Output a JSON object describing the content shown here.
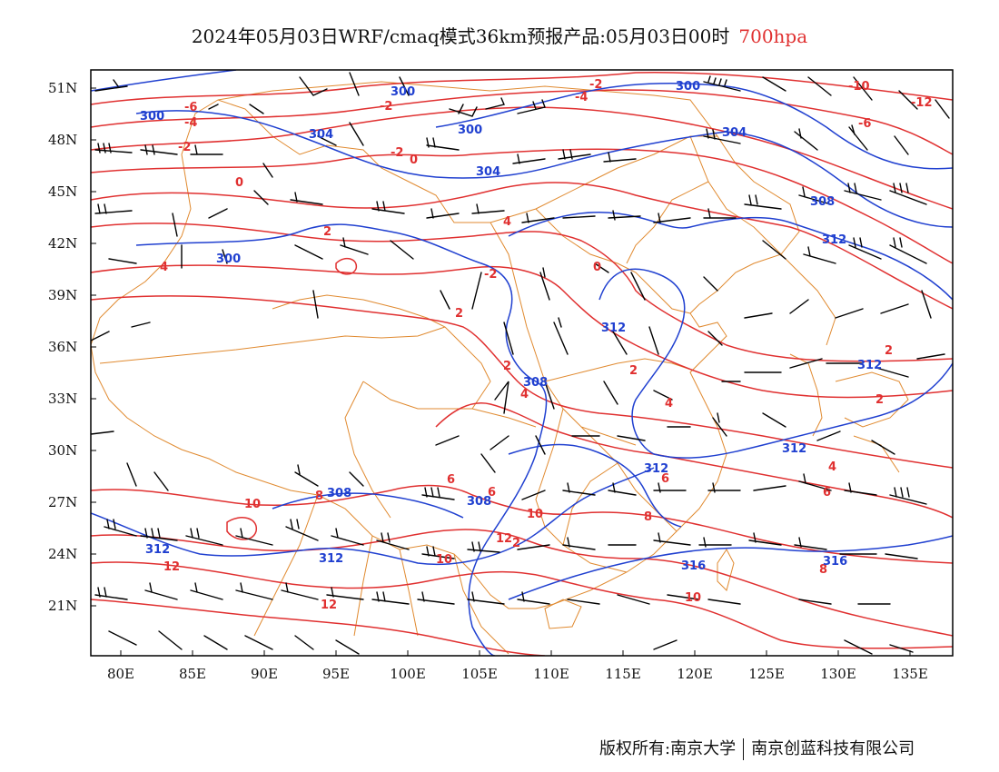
{
  "header": {
    "title": "2024年05月03日WRF/cmaq模式36km预报产品:05月03日00时",
    "level": "700hpa"
  },
  "axes": {
    "lat_labels": [
      "51N",
      "48N",
      "45N",
      "42N",
      "39N",
      "36N",
      "33N",
      "30N",
      "27N",
      "24N",
      "21N"
    ],
    "lon_labels": [
      "80E",
      "85E",
      "90E",
      "95E",
      "100E",
      "105E",
      "110E",
      "115E",
      "120E",
      "125E",
      "130E",
      "135E"
    ]
  },
  "contour_labels": {
    "temperature": [
      "-10",
      "-12",
      "-6",
      "-4",
      "-2",
      "-6",
      "-2",
      "-4",
      "-2",
      "-2",
      "0",
      "0",
      "2",
      "4",
      "4",
      "2",
      "-2",
      "2",
      "0",
      "2",
      "2",
      "4",
      "4",
      "6",
      "6",
      "8",
      "10",
      "8",
      "10",
      "12",
      "12",
      "12",
      "10",
      "8",
      "6",
      "4",
      "2",
      "2",
      "6",
      "10"
    ],
    "height": [
      "300",
      "300",
      "304",
      "300",
      "304",
      "304",
      "308",
      "300",
      "312",
      "312",
      "308",
      "312",
      "312",
      "312",
      "308",
      "308",
      "312",
      "312",
      "316",
      "316",
      "300"
    ]
  },
  "colors": {
    "temperature": "#e03030",
    "height": "#2040d0",
    "boundary": "#e08a30",
    "wind": "#000000",
    "frame": "#000000"
  },
  "footer": {
    "copyright": "版权所有:南京大学",
    "company": "南京创蓝科技有限公司"
  }
}
